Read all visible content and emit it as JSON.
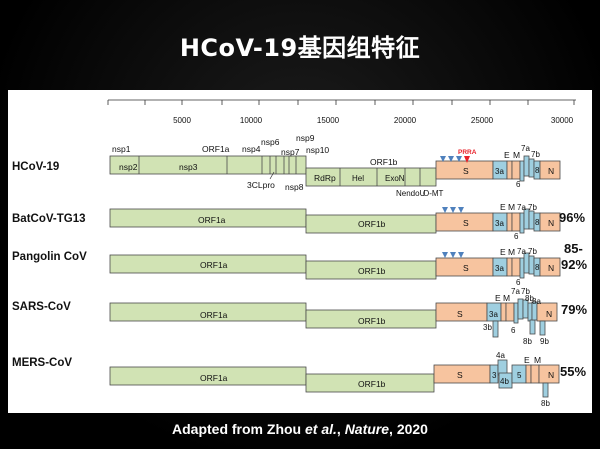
{
  "title": "HCoV-19基因组特征",
  "scale_ticks": [
    "5000",
    "10000",
    "15000",
    "20000",
    "25000",
    "30000"
  ],
  "genomes": [
    {
      "name": "HCoV-19",
      "identity": ""
    },
    {
      "name": "BatCoV-TG13",
      "identity": "96%"
    },
    {
      "name": "Pangolin CoV",
      "identity": "85-92%"
    },
    {
      "name": "SARS-CoV",
      "identity": "79%"
    },
    {
      "name": "MERS-CoV",
      "identity": "55%"
    }
  ],
  "labels": {
    "orf1a": "ORF1a",
    "orf1b": "ORF1b",
    "nsp1": "nsp1",
    "nsp2": "nsp2",
    "nsp3": "nsp3",
    "nsp4": "nsp4",
    "nsp6": "nsp6",
    "nsp7": "nsp7",
    "nsp8": "nsp8",
    "nsp9": "nsp9",
    "nsp10": "nsp10",
    "cl3pro": "3CLpro",
    "rdrp": "RdRp",
    "hel": "Hel",
    "exon": "ExoN",
    "nendou": "NendoU",
    "omt": "O-MT",
    "prra": "PRRA",
    "s": "S",
    "e": "E",
    "m": "M",
    "n": "N",
    "orf3a": "3a",
    "orf3b": "3b",
    "orf3": "3",
    "orf4a": "4a",
    "orf4b": "4b",
    "orf5": "5",
    "orf6": "6",
    "orf7a": "7a",
    "orf7b": "7b",
    "orf8": "8",
    "orf8b": "8b",
    "orf8a": "8a",
    "orf9b": "9b"
  },
  "caption": {
    "prefix": "Adapted from Zhou ",
    "etal": "et al.",
    "sep": ", ",
    "journal": "Nature",
    "year": ", 2020"
  },
  "colors": {
    "orf1": "#d1e3b4",
    "s": "#f7c49f",
    "accessory": "#9fcfe0",
    "edge": "#4a4a4a",
    "triangle": "#4f81bd",
    "prra": "#e8212a"
  }
}
